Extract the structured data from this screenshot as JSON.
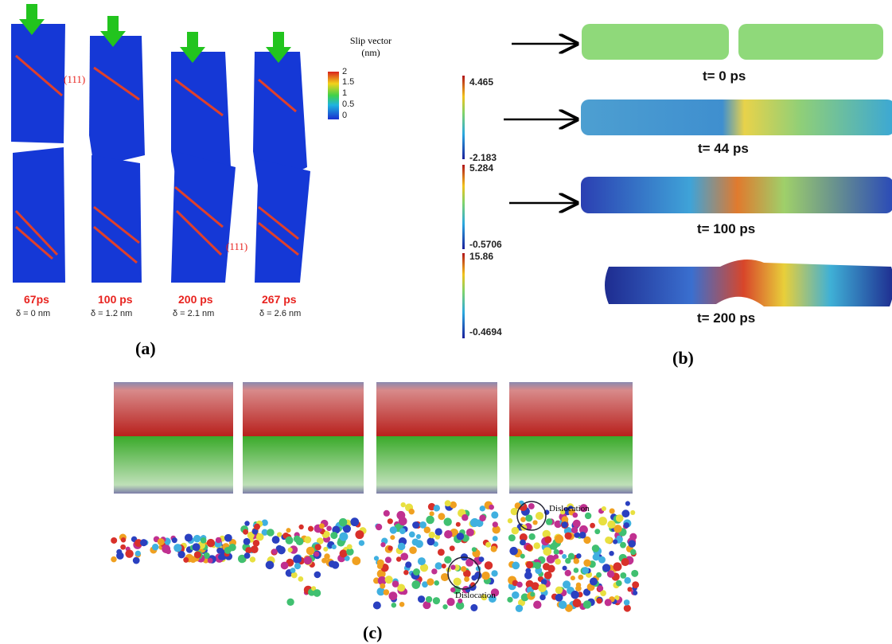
{
  "panel_a": {
    "colorbar_title": "Slip vector (nm)",
    "colorbar_ticks": [
      "2",
      "1.5",
      "1",
      "0.5",
      "0"
    ],
    "plane_labels": [
      "(111)",
      "(111)"
    ],
    "times": [
      "67ps",
      "100 ps",
      "200 ps",
      "267 ps"
    ],
    "displacements": [
      "δ = 0 nm",
      "δ = 1.2 nm",
      "δ = 2.1 nm",
      "δ = 2.6 nm"
    ],
    "label": "(a)"
  },
  "panel_b": {
    "colorbars": [
      [
        "4.465",
        "-2.183"
      ],
      [
        "5.284",
        "-0.5706"
      ],
      [
        "15.86",
        "-0.4694"
      ]
    ],
    "times": [
      "t= 0 ps",
      "t= 44 ps",
      "t= 100 ps",
      "t= 200 ps"
    ],
    "label": "(b)"
  },
  "panel_c": {
    "annotations": [
      "Dislocation",
      "Dislocation"
    ],
    "label": "(c)"
  }
}
